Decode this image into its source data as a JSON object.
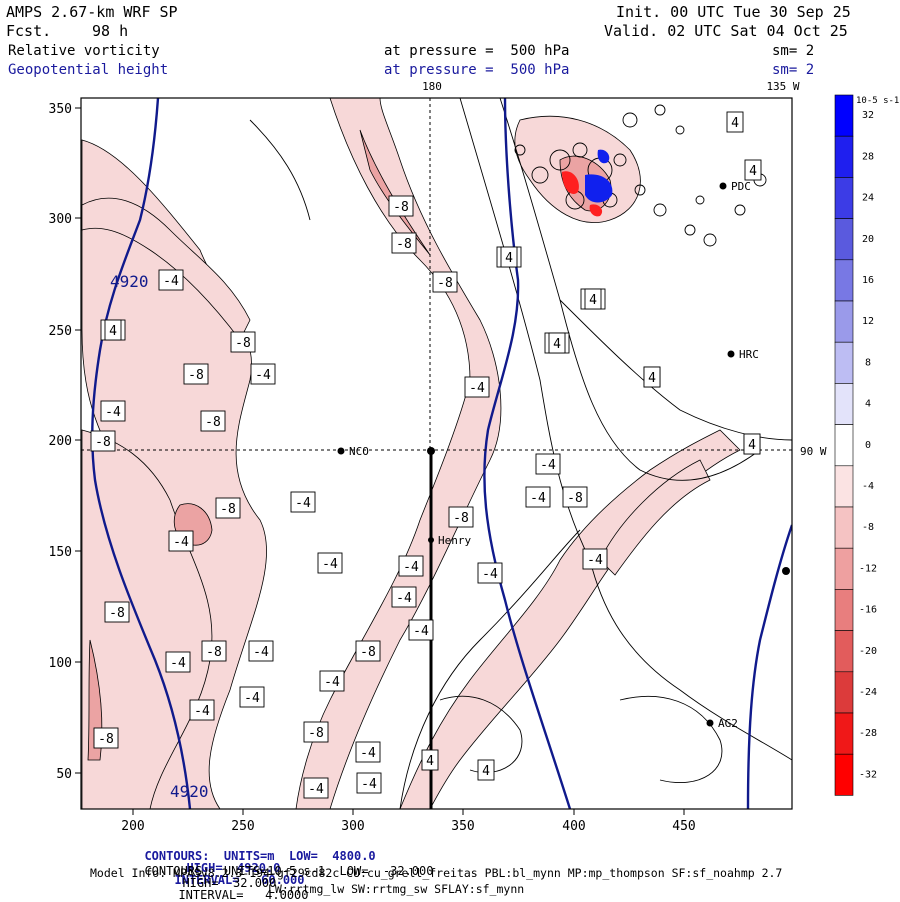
{
  "header": {
    "model": "AMPS 2.67-km WRF SP",
    "fcst_label": "Fcst.",
    "fcst_value": "98 h",
    "init": "Init. 00 UTC Tue 30 Sep 25",
    "valid": "Valid. 02 UTC Sat 04 Oct 25",
    "field1_name": "Relative vorticity",
    "field1_level": "at pressure =  500 hPa",
    "field1_sm": "sm= 2",
    "field2_name": "Geopotential height",
    "field2_level": "at pressure =  500 hPa",
    "field2_sm": "sm= 2"
  },
  "map": {
    "top_labels": [
      "180",
      "135 W"
    ],
    "right_label": "90 W",
    "x_ticks": [
      "200",
      "250",
      "300",
      "350",
      "400",
      "450"
    ],
    "y_ticks": [
      "350",
      "300",
      "250",
      "200",
      "150",
      "100",
      "50"
    ],
    "stations": [
      "NCO",
      "Henry",
      "HRC",
      "AG2",
      "PDC"
    ],
    "height_labels": [
      "4920",
      "4920"
    ],
    "vort_labels": [
      "-4",
      "-8",
      "-8",
      "-8",
      "-4",
      "-8",
      "-8",
      "-4",
      "-8",
      "-8",
      "-4",
      "-8",
      "-4",
      "-4",
      "-4",
      "-8",
      "-4",
      "-4",
      "-4",
      "-4",
      "-4",
      "-8",
      "-8",
      "-4",
      "-4",
      "-8",
      "-8",
      "-4",
      "-4",
      "-4",
      "-8",
      "-4",
      "-4",
      "-4",
      "-4",
      "-4",
      "-8",
      "-8",
      "-8",
      "-4",
      "-4",
      "4",
      "4",
      "4",
      "4",
      "4",
      "4",
      "4",
      "4",
      "4",
      "4",
      "4",
      "4"
    ]
  },
  "colorbar": {
    "unit": "10-5 s-1",
    "labels": [
      "32",
      "28",
      "24",
      "20",
      "16",
      "12",
      "8",
      "4",
      "0",
      "-4",
      "-8",
      "-12",
      "-16",
      "-20",
      "-24",
      "-28",
      "-32"
    ],
    "colors": [
      "#0000ff",
      "#1f1fef",
      "#3c3ce6",
      "#5a5ade",
      "#7878e4",
      "#9a9aea",
      "#bdbdf3",
      "#e3e3fa",
      "#ffffff",
      "#fbe3e3",
      "#f5c3c3",
      "#eea0a0",
      "#e87e7e",
      "#e25c5c",
      "#dc3b3b",
      "#f01818",
      "#ff0000"
    ]
  },
  "footer": {
    "contour1_prefix": "CONTOURS:  UNITS=m  LOW=  4800.0",
    "contour1_high": "HIGH=  4920.0",
    "contour1_interval": "INTERVAL=   60.000",
    "contour2_prefix": "CONTOURS:  UNITS=10-5 s-1  LOW=  -32.000",
    "contour2_high": "HIGH=  32.000",
    "contour2_interval": "INTERVAL=   4.0000",
    "model_info": "Model Info: MPASv8.2.3-194-gf29cd82c CU:cu_grell_freitas PBL:bl_mynn MP:mp_thompson SF:sf_noahmp 2.7",
    "model_info2": "LW:rrtmg_lw SW:rrtmg_sw SFLAY:sf_mynn"
  }
}
